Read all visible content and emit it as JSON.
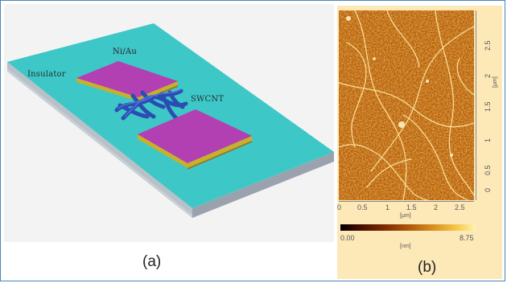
{
  "figure": {
    "panel_a": {
      "caption": "(a)",
      "labels": {
        "insulator": "Insulator",
        "contact": "Ni/Au",
        "channel": "SWCNT"
      },
      "colors": {
        "substrate": "#3ec7c7",
        "substrate_side": "#9fa8b2",
        "pad_top": "#b240b2",
        "pad_edge": "#c9b02a",
        "nanotube": "#2b4db3"
      }
    },
    "panel_b": {
      "caption": "(b)",
      "x_ticks": [
        "0",
        "0.5",
        "1",
        "1.5",
        "2",
        "2.5"
      ],
      "x_unit": "[µm]",
      "y_ticks": [
        "0",
        "0.5",
        "1",
        "1.5",
        "2",
        "2.5"
      ],
      "y_unit": "[µm]",
      "scale_min": "0.00",
      "scale_max": "8.75",
      "scale_unit": "[nm]"
    }
  }
}
